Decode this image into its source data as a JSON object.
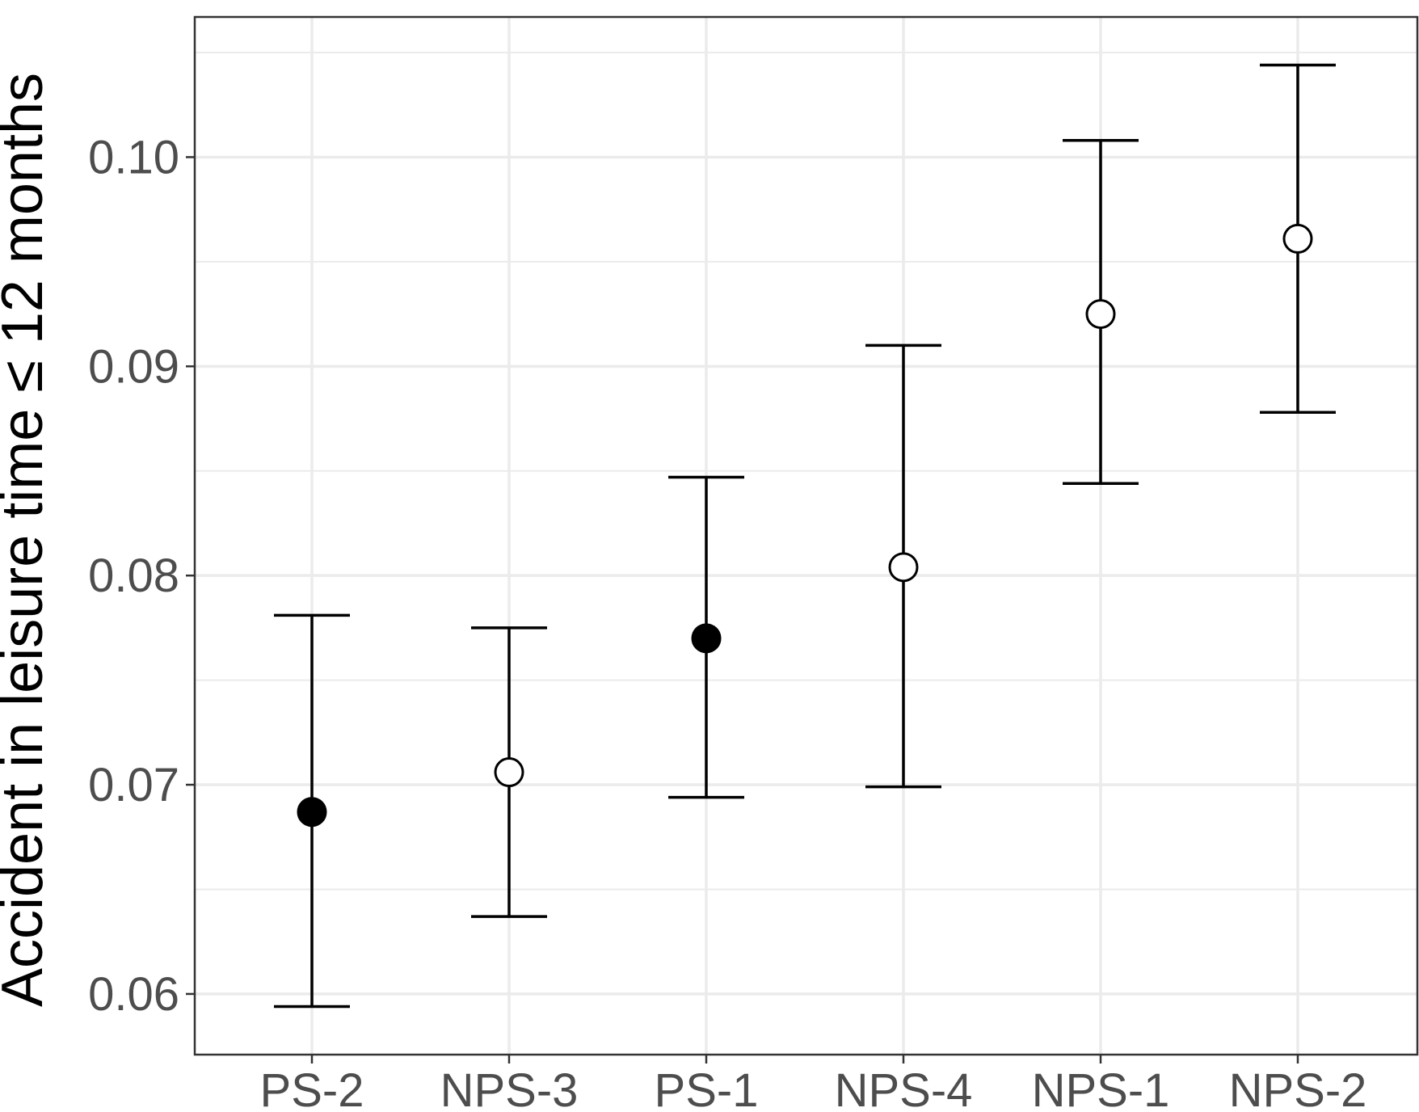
{
  "chart_data": {
    "type": "scatter",
    "ylabel": "Accident in leisure time ≤ 12 months",
    "categories": [
      "PS-2",
      "NPS-3",
      "PS-1",
      "NPS-4",
      "NPS-1",
      "NPS-2"
    ],
    "points": [
      {
        "category": "PS-2",
        "value": 0.0687,
        "lower": 0.0594,
        "upper": 0.0781,
        "marker": "filled"
      },
      {
        "category": "NPS-3",
        "value": 0.0706,
        "lower": 0.0637,
        "upper": 0.0775,
        "marker": "open"
      },
      {
        "category": "PS-1",
        "value": 0.077,
        "lower": 0.0694,
        "upper": 0.0847,
        "marker": "filled"
      },
      {
        "category": "NPS-4",
        "value": 0.0804,
        "lower": 0.0699,
        "upper": 0.091,
        "marker": "open"
      },
      {
        "category": "NPS-1",
        "value": 0.0925,
        "lower": 0.0844,
        "upper": 0.1008,
        "marker": "open"
      },
      {
        "category": "NPS-2",
        "value": 0.0961,
        "lower": 0.0878,
        "upper": 0.1044,
        "marker": "open"
      }
    ],
    "yticks": [
      0.06,
      0.07,
      0.08,
      0.09,
      0.1
    ],
    "ytick_labels": [
      "0.06",
      "0.07",
      "0.08",
      "0.09",
      "0.10"
    ],
    "ylim": [
      0.0571,
      0.1067
    ],
    "grid": true,
    "colors": {
      "grid": "#ebebeb",
      "tick_text": "#4d4d4d",
      "marks": "#000000",
      "panel_border": "#333333"
    }
  }
}
